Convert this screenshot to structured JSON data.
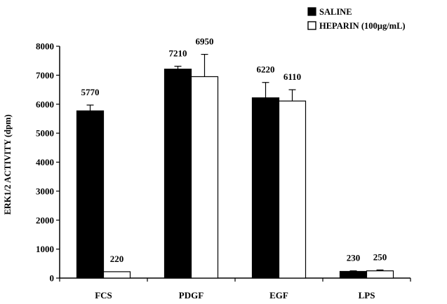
{
  "chart_data": {
    "type": "bar",
    "title": "",
    "xlabel": "",
    "ylabel": "ERK1/2 ACTIVITY (dpm)",
    "ylim": [
      0,
      8000
    ],
    "yticks": [
      0,
      1000,
      2000,
      3000,
      4000,
      5000,
      6000,
      7000,
      8000
    ],
    "grid": false,
    "legend_position": "top-right",
    "categories": [
      "FCS",
      "PDGF",
      "EGF",
      "LPS"
    ],
    "series": [
      {
        "name": "SALINE",
        "color": "#000000",
        "values": [
          5770,
          7210,
          6220,
          230
        ],
        "errors": [
          200,
          100,
          530,
          20
        ],
        "value_labels": [
          "5770",
          "7210",
          "6220",
          "230"
        ]
      },
      {
        "name": "HEPARIN (100µg/mL)",
        "color": "#ffffff",
        "values": [
          220,
          6950,
          6110,
          250
        ],
        "errors": [
          0,
          770,
          390,
          30
        ],
        "value_labels": [
          "220",
          "6950",
          "6110",
          "250"
        ]
      }
    ]
  }
}
